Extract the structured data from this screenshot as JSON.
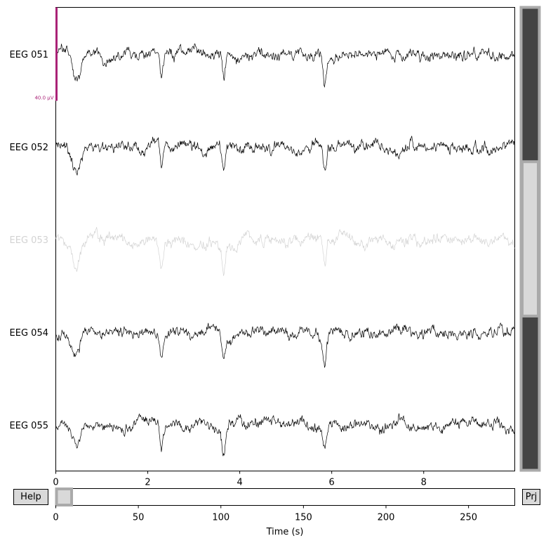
{
  "controls": {
    "help_label": "Help",
    "proj_label": "Prj"
  },
  "colors": {
    "trace": "#000000",
    "bad_trace": "#d3d3d3",
    "scalebar": "#aa2277",
    "scrollbar_bg": "#444444",
    "scrollbar_thumb": "#d9d9d9",
    "scrollbar_border": "#aaaaaa"
  },
  "chart_data": [
    {
      "type": "line",
      "title": "",
      "xlabel": "",
      "ylabel": "",
      "xlim": [
        0,
        9.98
      ],
      "x_ticks": [
        0,
        2,
        4,
        6,
        8
      ],
      "scalebar_label": "40.0 µV",
      "grid": false,
      "series": [
        {
          "name": "EEG 051",
          "bad": false,
          "seed": 11
        },
        {
          "name": "EEG 052",
          "bad": false,
          "seed": 23
        },
        {
          "name": "EEG 053",
          "bad": true,
          "seed": 37
        },
        {
          "name": "EEG 054",
          "bad": false,
          "seed": 51
        },
        {
          "name": "EEG 055",
          "bad": false,
          "seed": 67
        }
      ],
      "artifacts_s": [
        0.45,
        2.3,
        3.65,
        5.85
      ]
    },
    {
      "type": "line",
      "title": "",
      "xlabel": "Time (s)",
      "ylabel": "",
      "xlim": [
        0,
        278
      ],
      "x_ticks": [
        0,
        50,
        100,
        150,
        200,
        250
      ],
      "view_window_s": [
        0,
        10
      ]
    }
  ],
  "vscroll": {
    "total_channels": 15,
    "visible_start": 5,
    "visible_count": 5
  }
}
